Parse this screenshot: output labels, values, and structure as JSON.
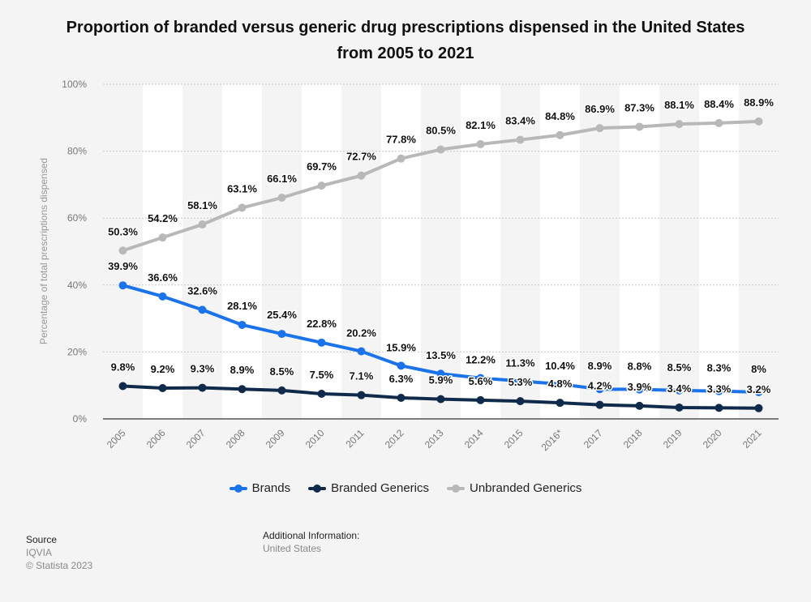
{
  "title": "Proportion of branded versus generic drug prescriptions dispensed in the United States from 2005 to 2021",
  "source": {
    "heading": "Source",
    "lines": [
      "IQVIA",
      "© Statista 2023"
    ]
  },
  "additional_info": {
    "heading": "Additional Information:",
    "text": "United States"
  },
  "chart_data": {
    "type": "line",
    "title": "Proportion of branded versus generic drug prescriptions dispensed in the United States from 2005 to 2021",
    "ylabel": "Percentage of total prescriptions dispensed",
    "xlabel": "",
    "ylim": [
      0,
      100
    ],
    "yticks": [
      "0%",
      "20%",
      "40%",
      "60%",
      "80%",
      "100%"
    ],
    "grid": true,
    "legend_position": "bottom",
    "categories": [
      "2005",
      "2006",
      "2007",
      "2008",
      "2009",
      "2010",
      "2011",
      "2012",
      "2013",
      "2014",
      "2015",
      "2016*",
      "2017",
      "2018",
      "2019",
      "2020",
      "2021"
    ],
    "series": [
      {
        "name": "Brands",
        "color": "#1a73e8",
        "values": [
          39.9,
          36.6,
          32.6,
          28.1,
          25.4,
          22.8,
          20.2,
          15.9,
          13.5,
          12.2,
          11.3,
          10.4,
          8.9,
          8.8,
          8.5,
          8.3,
          8
        ],
        "labels": [
          "39.9%",
          "36.6%",
          "32.6%",
          "28.1%",
          "25.4%",
          "22.8%",
          "20.2%",
          "15.9%",
          "13.5%",
          "12.2%",
          "11.3%",
          "10.4%",
          "8.9%",
          "8.8%",
          "8.5%",
          "8.3%",
          "8%"
        ]
      },
      {
        "name": "Branded Generics",
        "color": "#0f2a4a",
        "values": [
          9.8,
          9.2,
          9.3,
          8.9,
          8.5,
          7.5,
          7.1,
          6.3,
          5.9,
          5.6,
          5.3,
          4.8,
          4.2,
          3.9,
          3.4,
          3.3,
          3.2
        ],
        "labels": [
          "9.8%",
          "9.2%",
          "9.3%",
          "8.9%",
          "8.5%",
          "7.5%",
          "7.1%",
          "6.3%",
          "5.9%",
          "5.6%",
          "5.3%",
          "4.8%",
          "4.2%",
          "3.9%",
          "3.4%",
          "3.3%",
          "3.2%"
        ]
      },
      {
        "name": "Unbranded Generics",
        "color": "#b8b8b8",
        "values": [
          50.3,
          54.2,
          58.1,
          63.1,
          66.1,
          69.7,
          72.7,
          77.8,
          80.5,
          82.1,
          83.4,
          84.8,
          86.9,
          87.3,
          88.1,
          88.4,
          88.9
        ],
        "labels": [
          "50.3%",
          "54.2%",
          "58.1%",
          "63.1%",
          "66.1%",
          "69.7%",
          "72.7%",
          "77.8%",
          "80.5%",
          "82.1%",
          "83.4%",
          "84.8%",
          "86.9%",
          "87.3%",
          "88.1%",
          "88.4%",
          "88.9%"
        ]
      }
    ]
  }
}
